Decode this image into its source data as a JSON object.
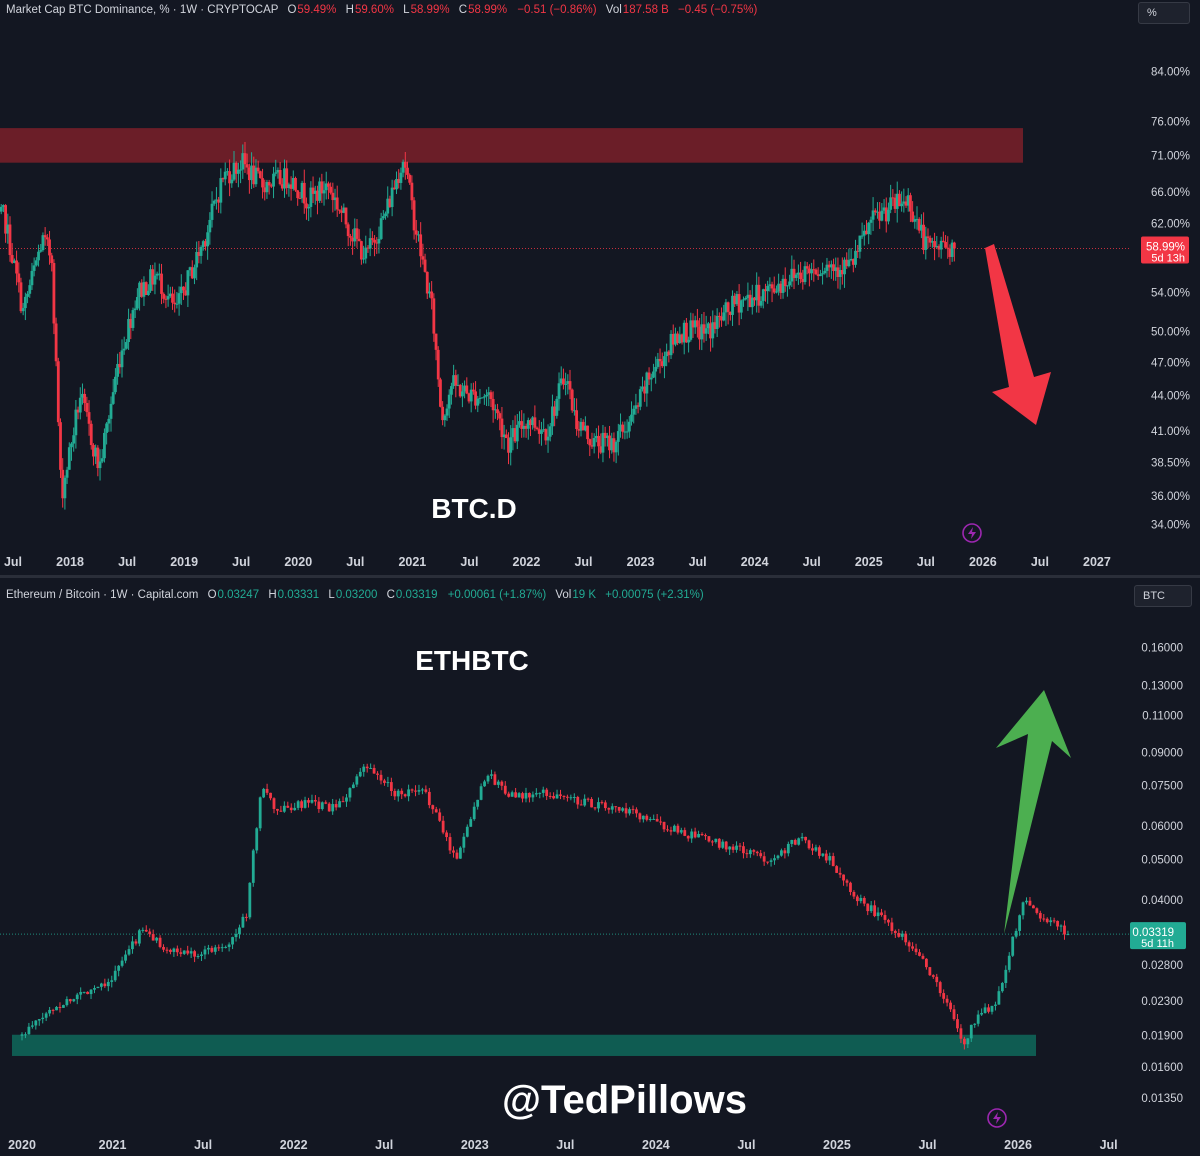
{
  "top_header": {
    "symbol": "Market Cap BTC Dominance, % · 1W · CRYPTOCAP",
    "o_label": "O",
    "o_value": "59.49%",
    "h_label": "H",
    "h_value": "59.60%",
    "l_label": "L",
    "l_value": "58.99%",
    "c_label": "C",
    "c_value": "58.99%",
    "change": "−0.51 (−0.86%)",
    "vol_label": "Vol",
    "vol_value": "187.58 B",
    "vol_change": "−0.45 (−0.75%)",
    "unit": "%"
  },
  "bottom_header": {
    "symbol": "Ethereum / Bitcoin · 1W · Capital.com",
    "o_label": "O",
    "o_value": "0.03247",
    "h_label": "H",
    "h_value": "0.03331",
    "l_label": "L",
    "l_value": "0.03200",
    "c_label": "C",
    "c_value": "0.03319",
    "change": "+0.00061 (+1.87%)",
    "vol_label": "Vol",
    "vol_value": "19 K",
    "vol_change": "+0.00075 (+2.31%)",
    "unit": "BTC"
  },
  "watermark": "@TedPillows",
  "colors": {
    "background": "#131722",
    "up": "#22ab94",
    "down": "#f23645",
    "resistance_zone": "#6b1e28",
    "support_zone": "#0f5c52",
    "arrow_down": "#f23645",
    "arrow_up": "#4caf50"
  },
  "chart_data": [
    {
      "type": "candlestick",
      "title": "BTC.D",
      "ylabel": "",
      "y_scale": "log",
      "ylim": [
        33.5,
        88
      ],
      "y_ticks": [
        "84.00%",
        "76.00%",
        "71.00%",
        "66.00%",
        "62.00%",
        "58.99%",
        "54.00%",
        "50.00%",
        "47.00%",
        "44.00%",
        "41.00%",
        "38.50%",
        "36.00%",
        "34.00%"
      ],
      "x_ticks": [
        "Jul",
        "2018",
        "Jul",
        "2019",
        "Jul",
        "2020",
        "Jul",
        "2021",
        "Jul",
        "2022",
        "Jul",
        "2023",
        "Jul",
        "2024",
        "Jul",
        "2025",
        "Jul",
        "2026",
        "Jul",
        "2027"
      ],
      "last_price": "58.99%",
      "countdown": "5d 13h",
      "resistance_zone": [
        70.0,
        75.0
      ],
      "path": [
        {
          "t": "2017-06",
          "v": 62
        },
        {
          "t": "2017-07",
          "v": 63
        },
        {
          "t": "2017-09",
          "v": 52
        },
        {
          "t": "2017-11",
          "v": 60
        },
        {
          "t": "2017-12",
          "v": 58
        },
        {
          "t": "2018-01",
          "v": 36
        },
        {
          "t": "2018-03",
          "v": 44
        },
        {
          "t": "2018-05",
          "v": 38
        },
        {
          "t": "2018-07",
          "v": 47
        },
        {
          "t": "2018-09",
          "v": 54
        },
        {
          "t": "2018-11",
          "v": 56
        },
        {
          "t": "2019-01",
          "v": 52
        },
        {
          "t": "2019-04",
          "v": 60
        },
        {
          "t": "2019-06",
          "v": 68
        },
        {
          "t": "2019-08",
          "v": 70
        },
        {
          "t": "2019-10",
          "v": 67
        },
        {
          "t": "2020-01",
          "v": 68
        },
        {
          "t": "2020-03",
          "v": 65
        },
        {
          "t": "2020-05",
          "v": 67
        },
        {
          "t": "2020-07",
          "v": 62
        },
        {
          "t": "2020-09",
          "v": 58
        },
        {
          "t": "2020-11",
          "v": 63
        },
        {
          "t": "2021-01",
          "v": 71
        },
        {
          "t": "2021-02",
          "v": 63
        },
        {
          "t": "2021-04",
          "v": 52
        },
        {
          "t": "2021-05",
          "v": 42
        },
        {
          "t": "2021-06",
          "v": 45
        },
        {
          "t": "2021-08",
          "v": 44
        },
        {
          "t": "2021-10",
          "v": 44
        },
        {
          "t": "2021-12",
          "v": 40
        },
        {
          "t": "2022-02",
          "v": 42
        },
        {
          "t": "2022-04",
          "v": 41
        },
        {
          "t": "2022-06",
          "v": 46
        },
        {
          "t": "2022-07",
          "v": 42
        },
        {
          "t": "2022-09",
          "v": 40
        },
        {
          "t": "2022-11",
          "v": 40
        },
        {
          "t": "2023-01",
          "v": 42
        },
        {
          "t": "2023-03",
          "v": 46
        },
        {
          "t": "2023-06",
          "v": 50
        },
        {
          "t": "2023-09",
          "v": 50
        },
        {
          "t": "2023-12",
          "v": 53
        },
        {
          "t": "2024-03",
          "v": 54
        },
        {
          "t": "2024-06",
          "v": 56
        },
        {
          "t": "2024-09",
          "v": 57
        },
        {
          "t": "2024-12",
          "v": 57
        },
        {
          "t": "2025-02",
          "v": 62
        },
        {
          "t": "2025-04",
          "v": 64
        },
        {
          "t": "2025-06",
          "v": 65
        },
        {
          "t": "2025-08",
          "v": 59
        },
        {
          "t": "2025-10",
          "v": 59.5
        },
        {
          "t": "2025-11",
          "v": 58.99
        }
      ]
    },
    {
      "type": "candlestick",
      "title": "ETHBTC",
      "ylabel": "",
      "y_scale": "log",
      "ylim": [
        0.0125,
        0.18
      ],
      "y_ticks": [
        "0.16000",
        "0.13000",
        "0.11000",
        "0.09000",
        "0.07500",
        "0.06000",
        "0.05000",
        "0.04000",
        "0.03319",
        "0.02800",
        "0.02300",
        "0.01900",
        "0.01600",
        "0.01350"
      ],
      "x_ticks": [
        "2020",
        "2021",
        "Jul",
        "2022",
        "Jul",
        "2023",
        "Jul",
        "2024",
        "Jul",
        "2025",
        "Jul",
        "2026",
        "Jul"
      ],
      "last_price": "0.03319",
      "countdown": "5d 11h",
      "support_zone": [
        0.017,
        0.0191
      ],
      "path": [
        {
          "t": "2020-01",
          "v": 0.019
        },
        {
          "t": "2020-03",
          "v": 0.022
        },
        {
          "t": "2020-05",
          "v": 0.024
        },
        {
          "t": "2020-07",
          "v": 0.026
        },
        {
          "t": "2020-09",
          "v": 0.034
        },
        {
          "t": "2020-11",
          "v": 0.03
        },
        {
          "t": "2021-01",
          "v": 0.03
        },
        {
          "t": "2021-03",
          "v": 0.032
        },
        {
          "t": "2021-04",
          "v": 0.037
        },
        {
          "t": "2021-05",
          "v": 0.075
        },
        {
          "t": "2021-06",
          "v": 0.065
        },
        {
          "t": "2021-08",
          "v": 0.068
        },
        {
          "t": "2021-10",
          "v": 0.066
        },
        {
          "t": "2021-12",
          "v": 0.083
        },
        {
          "t": "2022-02",
          "v": 0.072
        },
        {
          "t": "2022-04",
          "v": 0.072
        },
        {
          "t": "2022-06",
          "v": 0.05
        },
        {
          "t": "2022-08",
          "v": 0.08
        },
        {
          "t": "2022-10",
          "v": 0.07
        },
        {
          "t": "2022-12",
          "v": 0.072
        },
        {
          "t": "2023-03",
          "v": 0.068
        },
        {
          "t": "2023-06",
          "v": 0.064
        },
        {
          "t": "2023-09",
          "v": 0.058
        },
        {
          "t": "2023-12",
          "v": 0.054
        },
        {
          "t": "2024-03",
          "v": 0.05
        },
        {
          "t": "2024-05",
          "v": 0.056
        },
        {
          "t": "2024-07",
          "v": 0.05
        },
        {
          "t": "2024-09",
          "v": 0.04
        },
        {
          "t": "2024-11",
          "v": 0.035
        },
        {
          "t": "2025-01",
          "v": 0.03
        },
        {
          "t": "2025-03",
          "v": 0.022
        },
        {
          "t": "2025-04",
          "v": 0.018
        },
        {
          "t": "2025-05",
          "v": 0.022
        },
        {
          "t": "2025-06",
          "v": 0.022
        },
        {
          "t": "2025-07",
          "v": 0.03
        },
        {
          "t": "2025-08",
          "v": 0.04
        },
        {
          "t": "2025-09",
          "v": 0.037
        },
        {
          "t": "2025-10",
          "v": 0.035
        },
        {
          "t": "2025-11",
          "v": 0.03319
        }
      ]
    }
  ]
}
